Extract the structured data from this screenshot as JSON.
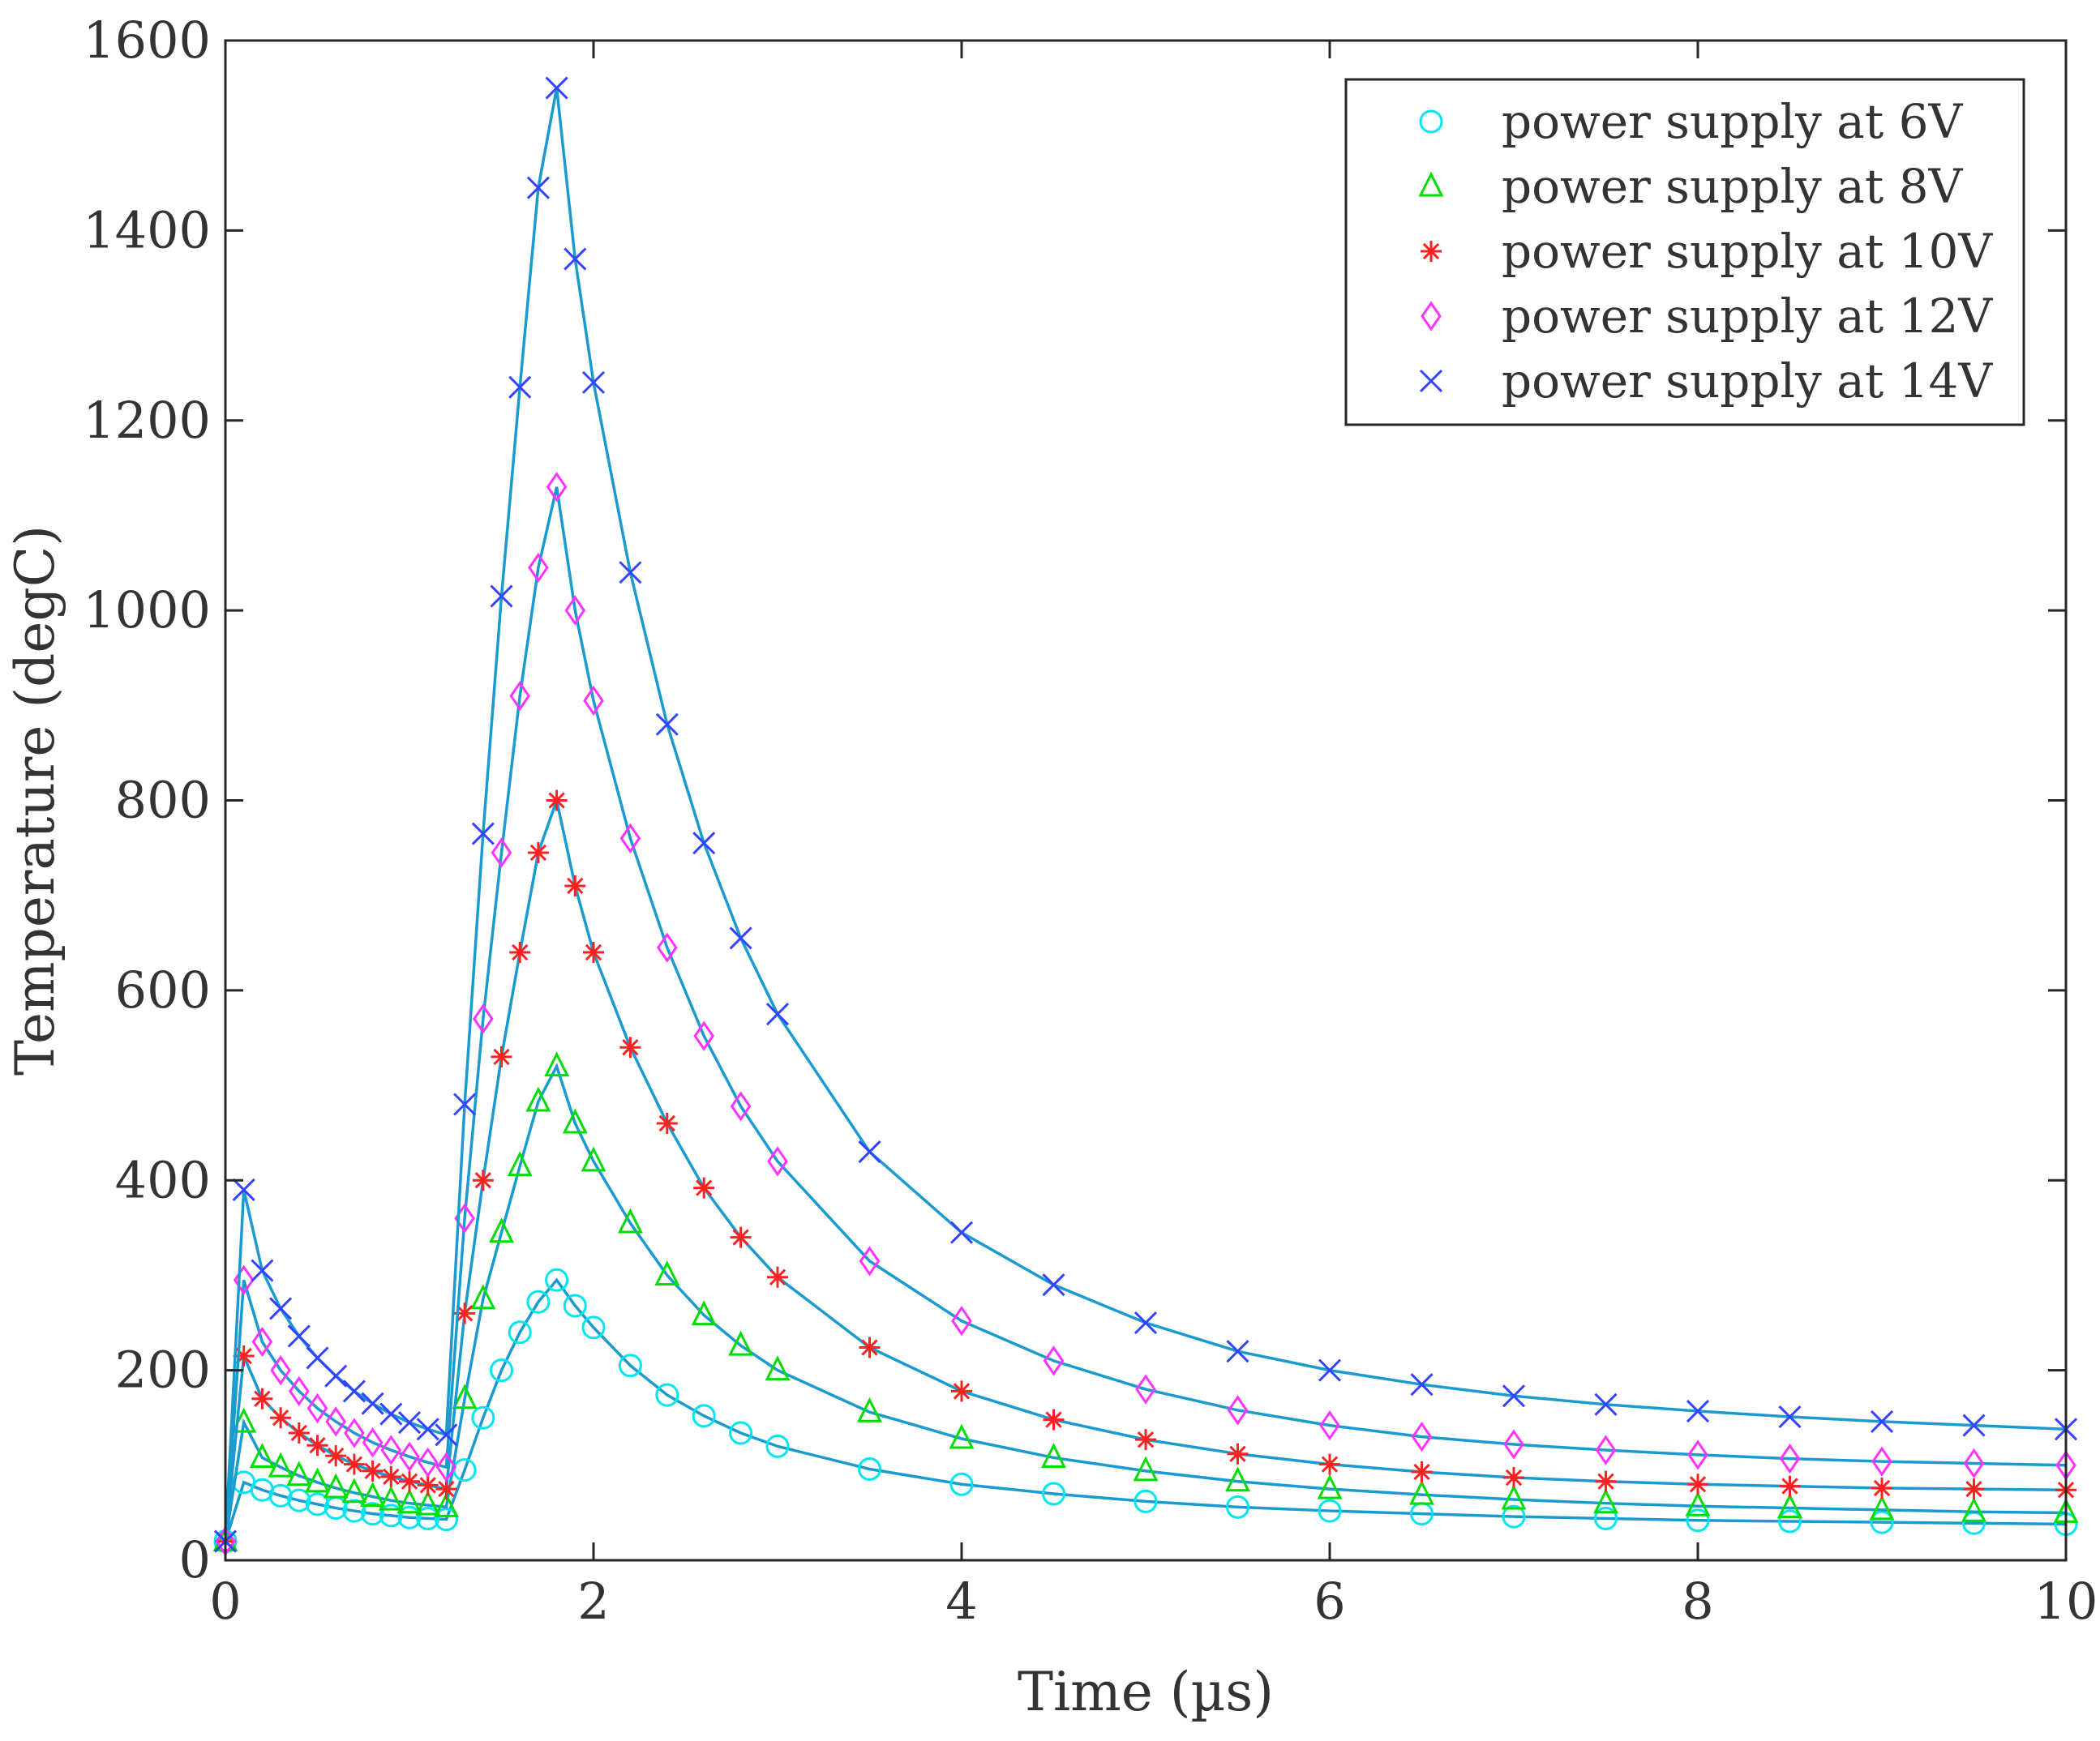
{
  "chart_data": {
    "type": "line",
    "title": "",
    "xlabel": "Time (µs)",
    "ylabel": "Temperature (degC)",
    "xlim": [
      0,
      10
    ],
    "ylim": [
      0,
      1600
    ],
    "xticks": [
      0,
      2,
      4,
      6,
      8,
      10
    ],
    "yticks": [
      0,
      200,
      400,
      600,
      800,
      1000,
      1200,
      1400,
      1600
    ],
    "grid": false,
    "legend_position": "top-right",
    "x": [
      0,
      0.1,
      0.2,
      0.3,
      0.4,
      0.5,
      0.6,
      0.7,
      0.8,
      0.9,
      1.0,
      1.1,
      1.2,
      1.3,
      1.4,
      1.5,
      1.6,
      1.7,
      1.8,
      1.9,
      2.0,
      2.2,
      2.4,
      2.6,
      2.8,
      3.0,
      3.5,
      4.0,
      4.5,
      5.0,
      5.5,
      6.0,
      6.5,
      7.0,
      7.5,
      8.0,
      8.5,
      9.0,
      9.5,
      10.0
    ],
    "series": [
      {
        "name": "power supply at 6V",
        "marker": "circle",
        "color": "#00e5ee",
        "values": [
          20,
          82,
          74,
          68,
          63,
          59,
          55,
          52,
          49,
          47,
          45,
          44,
          43,
          95,
          150,
          200,
          240,
          272,
          295,
          268,
          245,
          205,
          174,
          152,
          134,
          120,
          96,
          80,
          70,
          62,
          56,
          52,
          49,
          46,
          44,
          42,
          41,
          40,
          39,
          38
        ]
      },
      {
        "name": "power supply at 8V",
        "marker": "triangle",
        "color": "#00dd00",
        "values": [
          20,
          145,
          108,
          98,
          89,
          82,
          76,
          71,
          67,
          63,
          60,
          58,
          56,
          170,
          275,
          345,
          415,
          483,
          520,
          460,
          420,
          355,
          300,
          258,
          226,
          200,
          156,
          128,
          108,
          94,
          83,
          75,
          69,
          64,
          60,
          57,
          55,
          53,
          51,
          50
        ]
      },
      {
        "name": "power supply at 10V",
        "marker": "asterisk",
        "color": "#ff2020",
        "values": [
          20,
          215,
          170,
          150,
          134,
          121,
          110,
          101,
          94,
          88,
          83,
          79,
          75,
          260,
          400,
          530,
          640,
          745,
          800,
          710,
          640,
          540,
          460,
          392,
          340,
          298,
          224,
          178,
          148,
          127,
          112,
          101,
          93,
          87,
          83,
          80,
          78,
          76,
          75,
          74
        ]
      },
      {
        "name": "power supply at 12V",
        "marker": "diamond",
        "color": "#ff33ff",
        "values": [
          20,
          295,
          230,
          200,
          178,
          160,
          146,
          134,
          124,
          116,
          109,
          103,
          98,
          360,
          570,
          745,
          910,
          1045,
          1130,
          1000,
          905,
          760,
          645,
          552,
          478,
          420,
          315,
          252,
          210,
          180,
          158,
          142,
          130,
          122,
          116,
          111,
          107,
          104,
          102,
          100
        ]
      },
      {
        "name": "power supply at 14V",
        "marker": "x",
        "color": "#3344ff",
        "values": [
          20,
          390,
          305,
          265,
          236,
          213,
          194,
          178,
          165,
          154,
          145,
          138,
          132,
          480,
          765,
          1015,
          1235,
          1445,
          1550,
          1370,
          1240,
          1040,
          880,
          755,
          655,
          575,
          430,
          345,
          290,
          250,
          220,
          200,
          185,
          173,
          164,
          157,
          151,
          146,
          142,
          138
        ]
      }
    ]
  }
}
